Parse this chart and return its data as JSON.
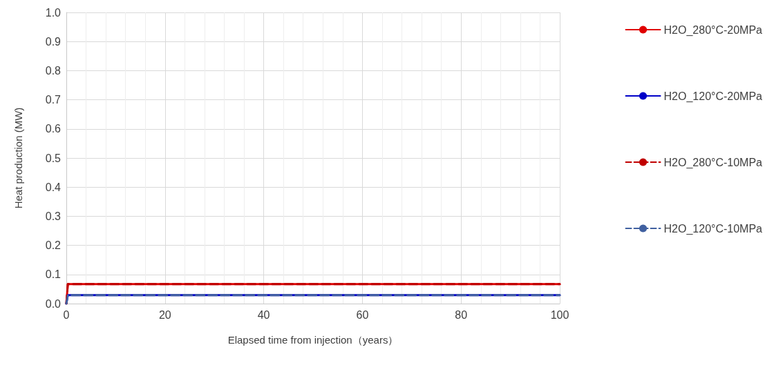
{
  "chart_data": {
    "type": "line",
    "xlabel": "Elapsed time from injection（years）",
    "ylabel": "Heat production (MW)",
    "xlim": [
      0,
      100
    ],
    "xticks": [
      0,
      20,
      40,
      60,
      80,
      100
    ],
    "ylim": [
      0,
      1
    ],
    "yticks": [
      {
        "value": 0,
        "label": "0.0"
      },
      0.1,
      0.2,
      0.3,
      0.4,
      0.5,
      0.6,
      0.7,
      0.8,
      0.9,
      {
        "value": 1,
        "label": "1.0"
      }
    ],
    "grid": true,
    "legend": "right",
    "marker": "none",
    "series": [
      {
        "name": "H2O_280°C-20MPa",
        "color": "#e00000",
        "line_style": "solid",
        "x": [
          0,
          0.3,
          100
        ],
        "values": [
          0,
          0.067,
          0.067
        ]
      },
      {
        "name": "H2O_120°C-20MPa",
        "color": "#0000c8",
        "line_style": "solid",
        "x": [
          0,
          0.3,
          100
        ],
        "values": [
          0,
          0.029,
          0.029
        ]
      },
      {
        "name": "H2O_280°C-10MPa",
        "color": "#c00000",
        "line_style": "dashed",
        "x": [
          0,
          0.3,
          100
        ],
        "values": [
          0,
          0.067,
          0.067
        ]
      },
      {
        "name": "H2O_120°C-10MPa",
        "color": "#4060a0",
        "line_style": "dashed",
        "x": [
          0,
          0.3,
          100
        ],
        "values": [
          0,
          0.029,
          0.029
        ]
      }
    ]
  }
}
